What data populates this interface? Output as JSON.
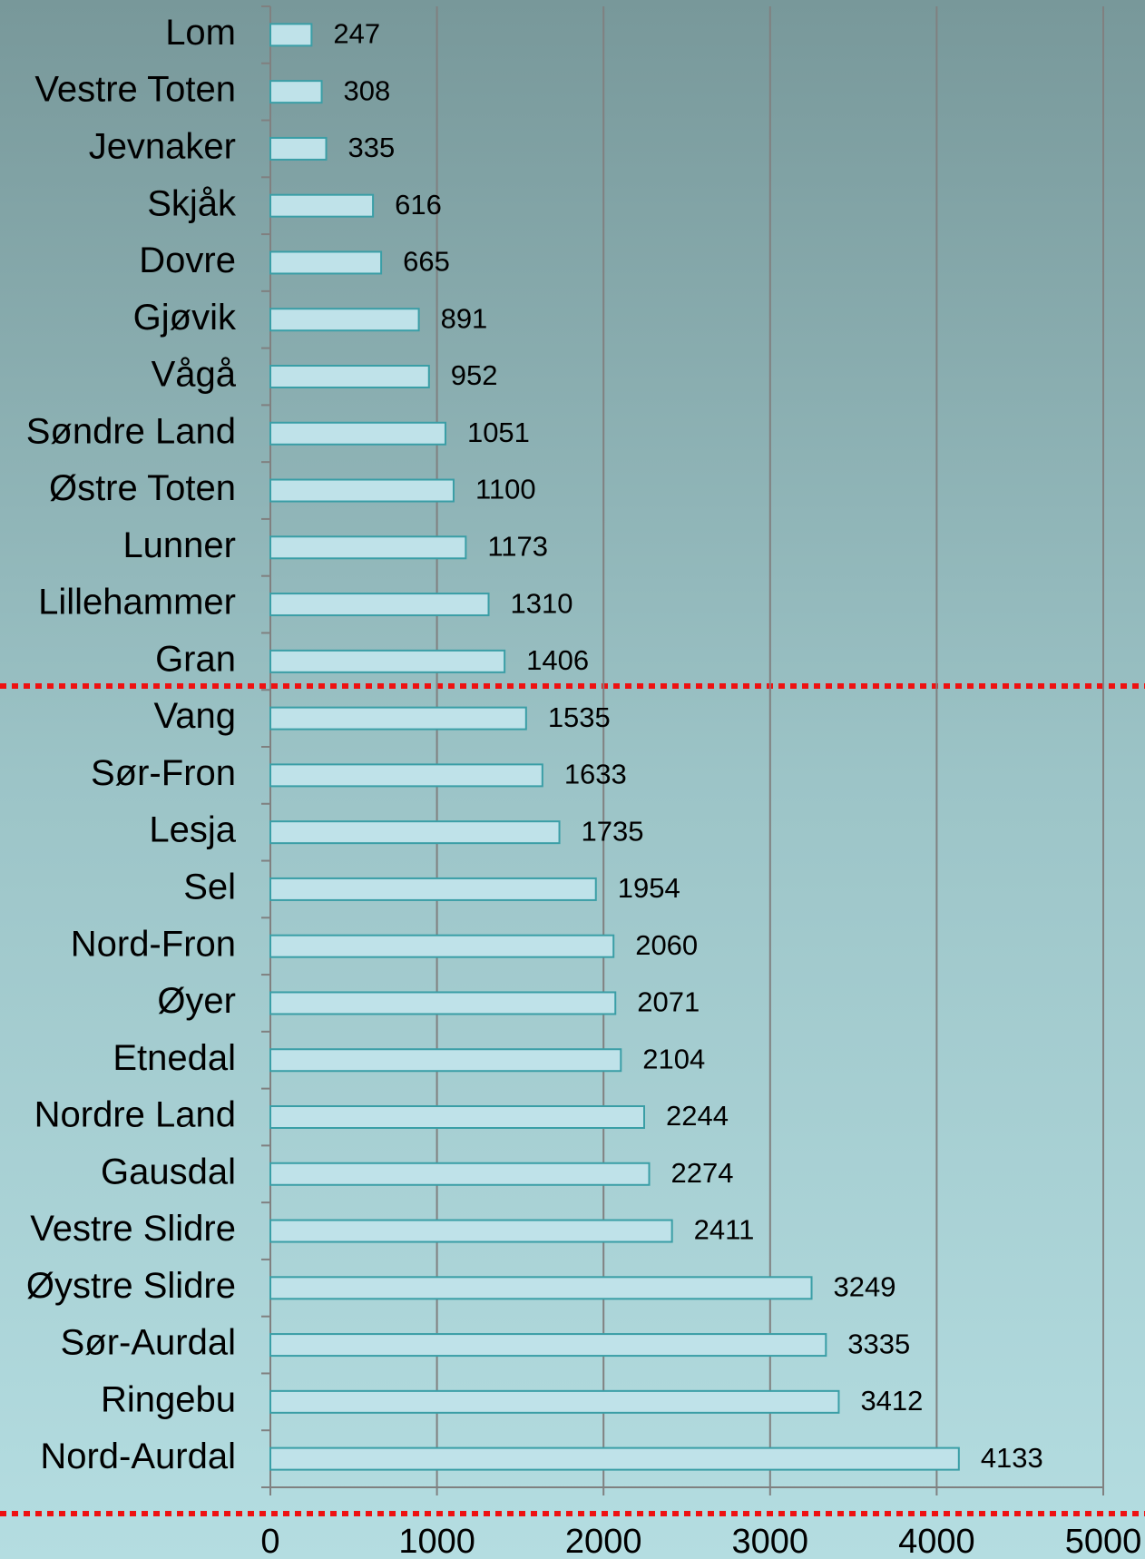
{
  "chart_data": {
    "type": "bar",
    "orientation": "horizontal",
    "categories": [
      "Lom",
      "Vestre Toten",
      "Jevnaker",
      "Skjåk",
      "Dovre",
      "Gjøvik",
      "Vågå",
      "Søndre Land",
      "Østre Toten",
      "Lunner",
      "Lillehammer",
      "Gran",
      "Vang",
      "Sør-Fron",
      "Lesja",
      "Sel",
      "Nord-Fron",
      "Øyer",
      "Etnedal",
      "Nordre Land",
      "Gausdal",
      "Vestre Slidre",
      "Øystre Slidre",
      "Sør-Aurdal",
      "Ringebu",
      "Nord-Aurdal"
    ],
    "values": [
      247,
      308,
      335,
      616,
      665,
      891,
      952,
      1051,
      1100,
      1173,
      1310,
      1406,
      1535,
      1633,
      1735,
      1954,
      2060,
      2071,
      2104,
      2244,
      2274,
      2411,
      3249,
      3335,
      3412,
      4133
    ],
    "color": "#bfe2e9",
    "edge_color": "#3a9ea6",
    "xlim": [
      0,
      5000
    ],
    "xticks": [
      0,
      1000,
      2000,
      3000,
      4000,
      5000
    ],
    "grid": true
  }
}
